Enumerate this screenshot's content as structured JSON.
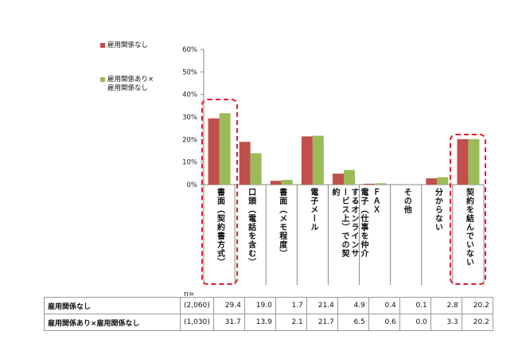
{
  "chart_data": {
    "type": "bar",
    "categories": [
      "書面（契約書方式）",
      "口頭（電話を含む）",
      "書面（メモ程度）",
      "電子メール",
      "電子（仕事を仲介するオンラインサービス上）での契約",
      "ＦＡＸ",
      "その他",
      "分からない",
      "契約を結んでいない"
    ],
    "series": [
      {
        "name": "雇用関係なし",
        "color": "#c0504d",
        "values": [
          29.4,
          19.0,
          1.7,
          21.4,
          4.9,
          0.4,
          0.1,
          2.8,
          20.2
        ]
      },
      {
        "name": "雇用関係あり×\n雇用関係なし",
        "color": "#9bbb59",
        "values": [
          31.7,
          13.9,
          2.1,
          21.7,
          6.5,
          0.6,
          0.0,
          3.3,
          20.2
        ]
      }
    ],
    "ylim": [
      0,
      60
    ],
    "ytick_labels": [
      "0%",
      "10%",
      "20%",
      "30%",
      "40%",
      "50%",
      "60%"
    ],
    "grid": false,
    "legend_position": "left",
    "highlighted_categories": [
      "書面（契約書方式）",
      "契約を結んでいない"
    ]
  },
  "table": {
    "n_label": "n=",
    "rows": [
      {
        "name": "雇用関係なし",
        "n": "(2,060)",
        "values": [
          "29.4",
          "19.0",
          "1.7",
          "21.4",
          "4.9",
          "0.4",
          "0.1",
          "2.8",
          "20.2"
        ]
      },
      {
        "name": "雇用関係あり×雇用関係なし",
        "n": "(1,030)",
        "values": [
          "31.7",
          "13.9",
          "2.1",
          "21.7",
          "6.5",
          "0.6",
          "0.0",
          "3.3",
          "20.2"
        ]
      }
    ]
  }
}
